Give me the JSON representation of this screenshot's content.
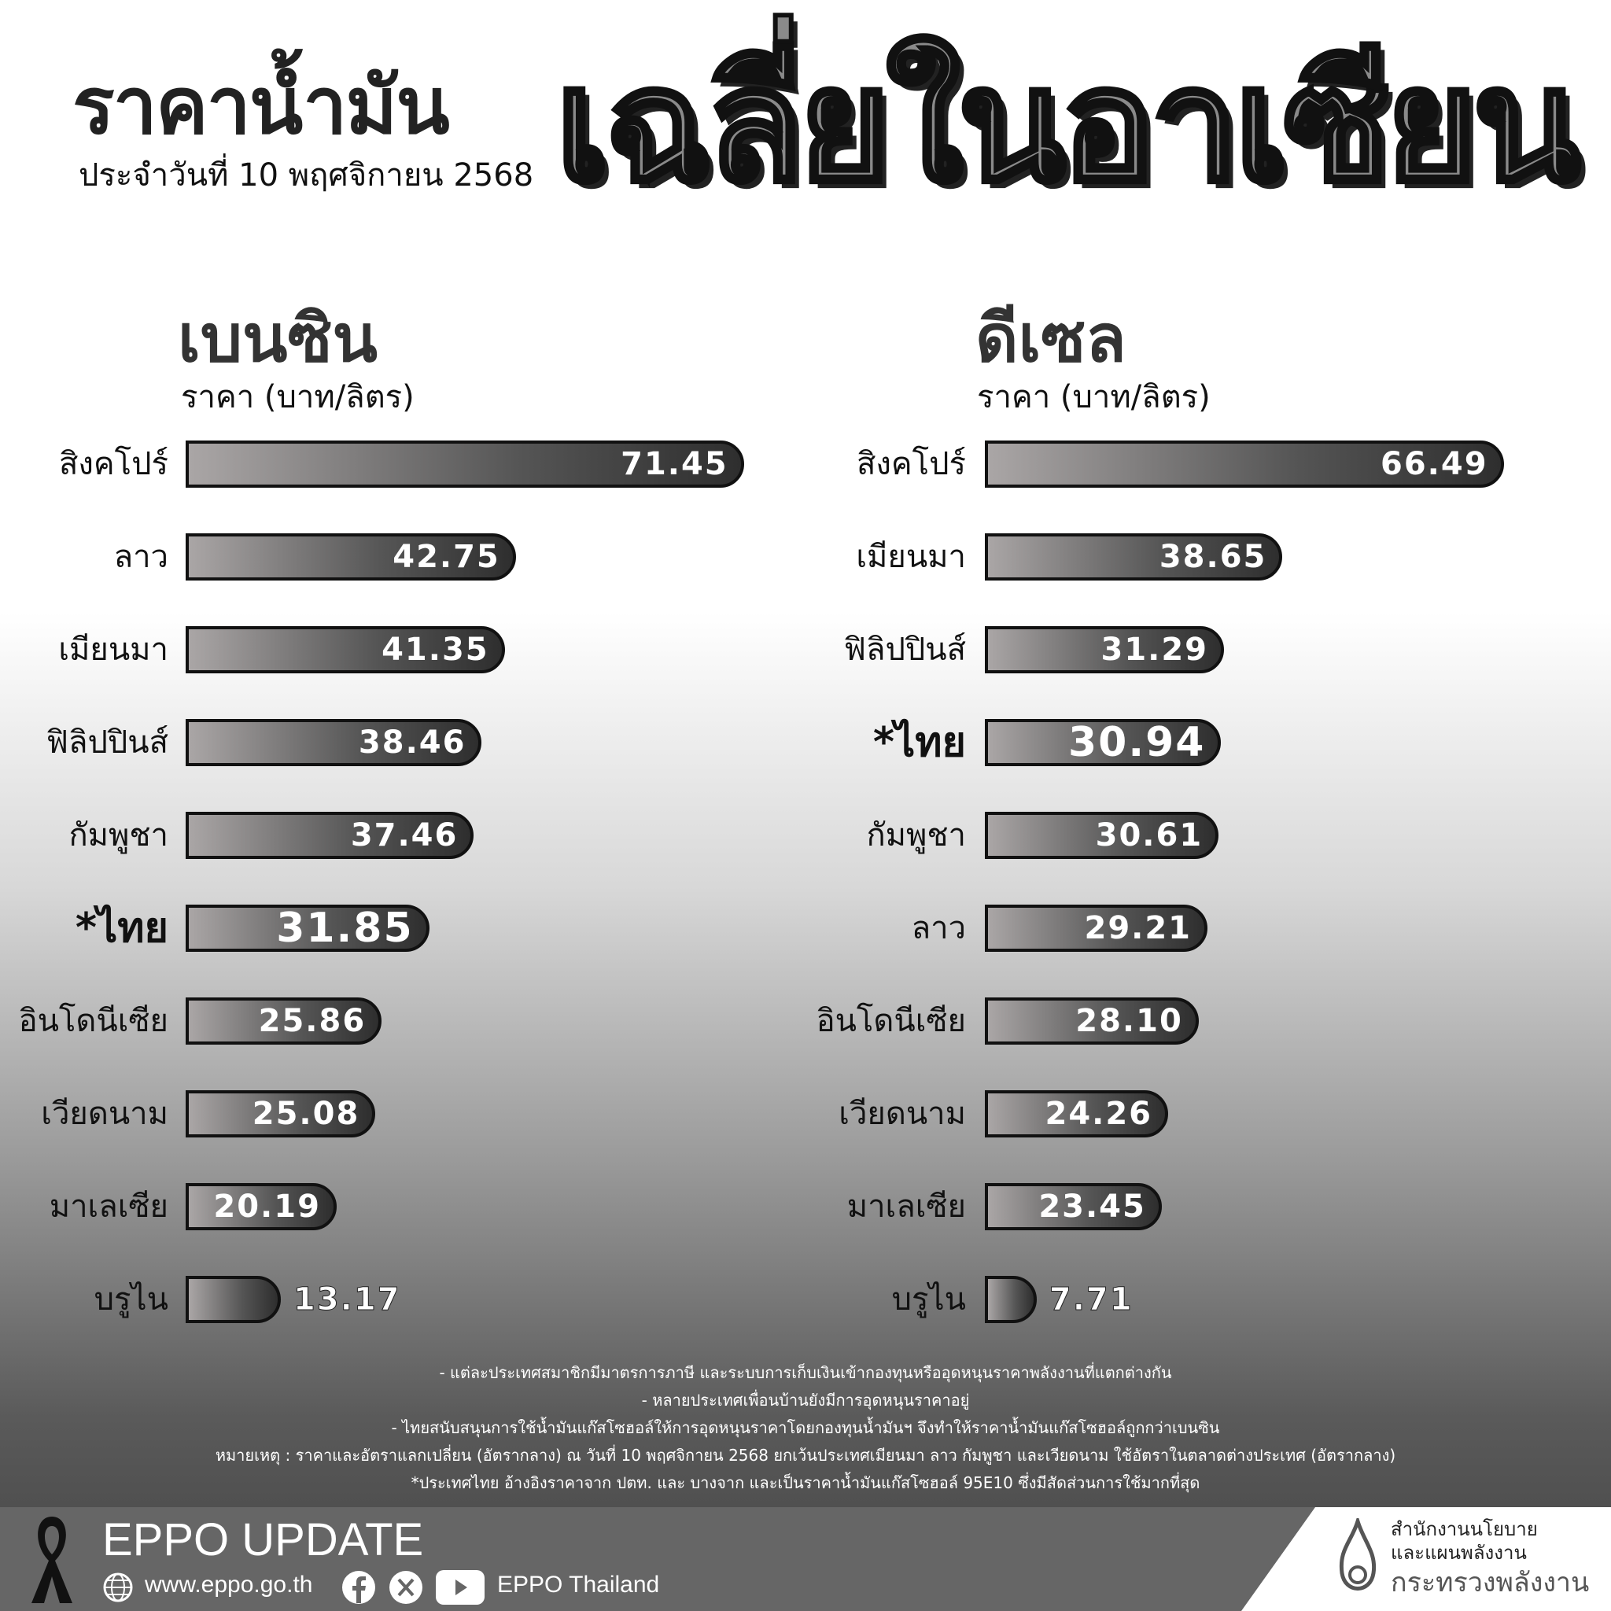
{
  "header": {
    "title_part1": "ราคาน้ำมัน",
    "title_part2": "เฉลี่ยในอาเซียน",
    "date": "ประจำวันที่  10 พฤศจิกายน 2568"
  },
  "chart_data": [
    {
      "type": "bar",
      "title": "เบนซิน",
      "ylabel": "ราคา (บาท/ลิตร)",
      "orientation": "horizontal",
      "categories": [
        "สิงคโปร์",
        "ลาว",
        "เมียนมา",
        "ฟิลิปปินส์",
        "กัมพูชา",
        "*ไทย",
        "อินโดนีเซีย",
        "เวียดนาม",
        "มาเลเซีย",
        "บรูไน"
      ],
      "values": [
        71.45,
        42.75,
        41.35,
        38.46,
        37.46,
        31.85,
        25.86,
        25.08,
        20.19,
        13.17
      ],
      "value_labels": [
        "71.45",
        "42.75",
        "41.35",
        "38.46",
        "37.46",
        "31.85",
        "25.86",
        "25.08",
        "20.19",
        "13.17"
      ],
      "highlight": "*ไทย"
    },
    {
      "type": "bar",
      "title": "ดีเซล",
      "ylabel": "ราคา (บาท/ลิตร)",
      "orientation": "horizontal",
      "categories": [
        "สิงคโปร์",
        "เมียนมา",
        "ฟิลิปปินส์",
        "*ไทย",
        "กัมพูชา",
        "ลาว",
        "อินโดนีเซีย",
        "เวียดนาม",
        "มาเลเซีย",
        "บรูไน"
      ],
      "values": [
        66.49,
        38.65,
        31.29,
        30.94,
        30.61,
        29.21,
        28.1,
        24.26,
        23.45,
        7.71
      ],
      "value_labels": [
        "66.49",
        "38.65",
        "31.29",
        "30.94",
        "30.61",
        "29.21",
        "28.10",
        "24.26",
        "23.45",
        "7.71"
      ],
      "highlight": "*ไทย"
    }
  ],
  "notes": [
    "- แต่ละประเทศสมาชิกมีมาตรการภาษี และระบบการเก็บเงินเข้ากองทุนหรืออุดหนุนราคาพลังงานที่แตกต่างกัน",
    "- หลายประเทศเพื่อนบ้านยังมีการอุดหนุนราคาอยู่",
    "- ไทยสนับสนุนการใช้น้ำมันแก๊สโซฮอล์ให้การอุดหนุนราคาโดยกองทุนน้ำมันฯ จึงทำให้ราคาน้ำมันแก๊สโซฮอล์ถูกกว่าเบนซิน",
    "หมายเหตุ : ราคาและอัตราแลกเปลี่ยน (อัตรากลาง) ณ วันที่ 10 พฤศจิกายน 2568 ยกเว้นประเทศเมียนมา ลาว กัมพูชา และเวียดนาม ใช้อัตราในตลาดต่างประเทศ (อัตรากลาง)",
    "*ประเทศไทย อ้างอิงราคาจาก ปตท. และ บางจาก และเป็นราคาน้ำมันแก๊สโซฮอล์ 95E10 ซึ่งมีสัดส่วนการใช้มากที่สุด"
  ],
  "footer": {
    "brand": "EPPO UPDATE",
    "website": "www.eppo.go.th",
    "social": "EPPO Thailand",
    "icons": [
      "ribbon-icon",
      "globe-icon",
      "facebook-icon",
      "x-icon",
      "youtube-icon"
    ],
    "org_line1": "สำนักงานนโยบาย",
    "org_line2": "และแผนพลังงาน",
    "ministry": "กระทรวงพลังงาน"
  }
}
